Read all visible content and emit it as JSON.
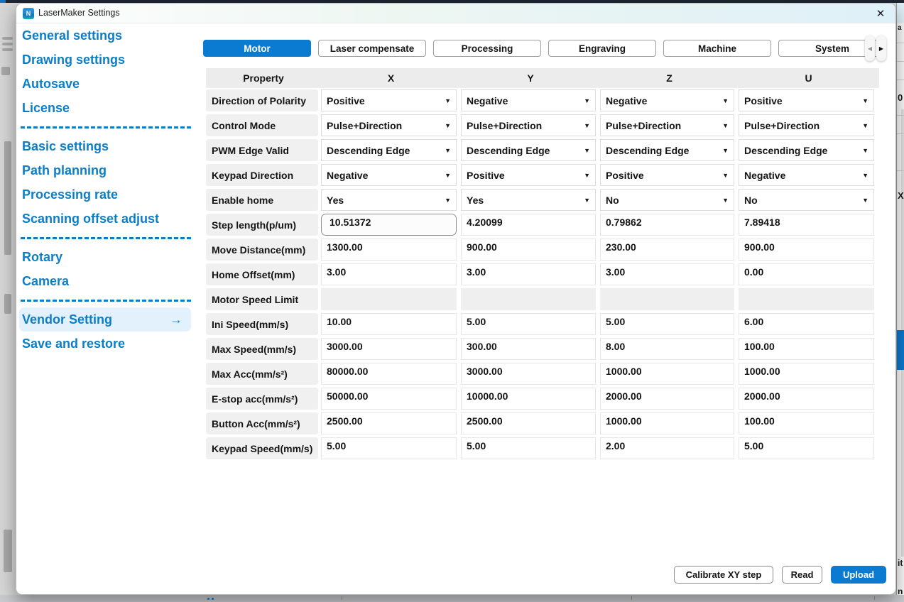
{
  "window": {
    "title": "LaserMaker Settings",
    "app_icon_text": "N",
    "close_glyph": "✕"
  },
  "sidebar": {
    "groups": [
      {
        "items": [
          {
            "label": "General settings"
          },
          {
            "label": "Drawing settings"
          },
          {
            "label": "Autosave"
          },
          {
            "label": "License"
          }
        ]
      },
      {
        "items": [
          {
            "label": "Basic settings"
          },
          {
            "label": "Path planning"
          },
          {
            "label": "Processing rate"
          },
          {
            "label": "Scanning offset adjust"
          }
        ]
      },
      {
        "items": [
          {
            "label": "Rotary"
          },
          {
            "label": "Camera"
          }
        ]
      },
      {
        "items": [
          {
            "label": "Vendor Setting",
            "active": true,
            "arrow": "→"
          },
          {
            "label": "Save and restore"
          }
        ]
      }
    ]
  },
  "tabs": [
    {
      "label": "Motor",
      "active": true
    },
    {
      "label": "Laser compensate",
      "active": false
    },
    {
      "label": "Processing",
      "active": false
    },
    {
      "label": "Engraving",
      "active": false
    },
    {
      "label": "Machine",
      "active": false
    },
    {
      "label": "System",
      "active": false
    }
  ],
  "tab_scroller": {
    "prev": "◀",
    "next": "▶"
  },
  "table": {
    "columns": [
      "Property",
      "X",
      "Y",
      "Z",
      "U"
    ],
    "dropdown_caret": "▼",
    "rows": [
      {
        "label": "Direction of Polarity",
        "type": "dropdown",
        "values": [
          "Positive",
          "Negative",
          "Negative",
          "Positive"
        ]
      },
      {
        "label": "Control Mode",
        "type": "dropdown",
        "values": [
          "Pulse+Direction",
          "Pulse+Direction",
          "Pulse+Direction",
          "Pulse+Direction"
        ]
      },
      {
        "label": "PWM Edge Valid",
        "type": "dropdown",
        "values": [
          "Descending Edge",
          "Descending Edge",
          "Descending Edge",
          "Descending Edge"
        ]
      },
      {
        "label": "Keypad Direction",
        "type": "dropdown",
        "values": [
          "Negative",
          "Positive",
          "Positive",
          "Negative"
        ]
      },
      {
        "label": "Enable home",
        "type": "dropdown",
        "values": [
          "Yes",
          "Yes",
          "No",
          "No"
        ]
      },
      {
        "label": "Step length(p/um)",
        "type": "input",
        "focused_index": 0,
        "values": [
          "10.51372",
          "4.20099",
          "0.79862",
          "7.89418"
        ]
      },
      {
        "label": "Move Distance(mm)",
        "type": "text",
        "values": [
          "1300.00",
          "900.00",
          "230.00",
          "900.00"
        ]
      },
      {
        "label": "Home Offset(mm)",
        "type": "text",
        "values": [
          "3.00",
          "3.00",
          "3.00",
          "0.00"
        ]
      },
      {
        "label": "Motor Speed Limit",
        "type": "empty",
        "values": [
          "",
          "",
          "",
          ""
        ]
      },
      {
        "label": "Ini Speed(mm/s)",
        "type": "text",
        "values": [
          "10.00",
          "5.00",
          "5.00",
          "6.00"
        ]
      },
      {
        "label": "Max Speed(mm/s)",
        "type": "text",
        "values": [
          "3000.00",
          "300.00",
          "8.00",
          "100.00"
        ]
      },
      {
        "label": "Max Acc(mm/s²)",
        "type": "text",
        "values": [
          "80000.00",
          "3000.00",
          "1000.00",
          "1000.00"
        ]
      },
      {
        "label": "E-stop acc(mm/s²)",
        "type": "text",
        "values": [
          "50000.00",
          "10000.00",
          "2000.00",
          "2000.00"
        ]
      },
      {
        "label": "Button Acc(mm/s²)",
        "type": "text",
        "values": [
          "2500.00",
          "2500.00",
          "1000.00",
          "100.00"
        ]
      },
      {
        "label": "Keypad Speed(mm/s)",
        "type": "text",
        "values": [
          "5.00",
          "5.00",
          "2.00",
          "5.00"
        ]
      }
    ]
  },
  "footer": {
    "buttons": [
      {
        "label": "Calibrate XY step",
        "variant": "outline"
      },
      {
        "label": "Read",
        "variant": "outline"
      },
      {
        "label": "Upload",
        "variant": "primary"
      }
    ]
  },
  "colors": {
    "accent": "#0b7bd1",
    "sidebar_text": "#0c7ec6",
    "active_item_bg": "#e2f1fb",
    "table_header_bg": "#ececec",
    "label_cell_bg": "#f0f0f0"
  },
  "background_edge": {
    "right_fragments": [
      "a",
      "0",
      "X",
      "it",
      "n"
    ]
  }
}
